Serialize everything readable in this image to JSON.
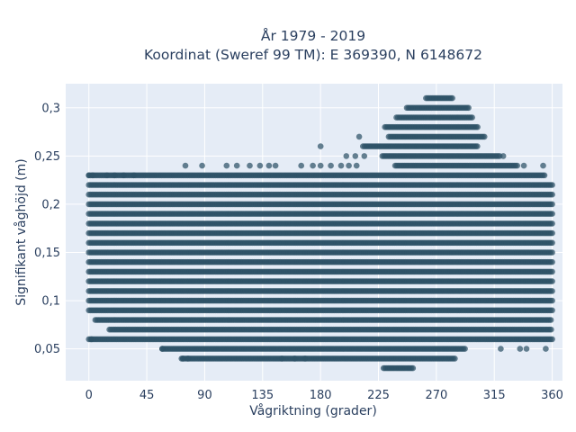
{
  "chart_data": {
    "type": "scatter",
    "title": "År 1979 - 2019",
    "subtitle": "Koordinat (Sweref 99 TM): E 369390, N 6148672",
    "xlabel": "Vågriktning (grader)",
    "ylabel": "Signifikant våghöjd (m)",
    "xlim": [
      -18,
      368
    ],
    "ylim": [
      0.017,
      0.325
    ],
    "x_ticks": [
      0,
      45,
      90,
      135,
      180,
      225,
      270,
      315,
      360
    ],
    "y_ticks": [
      0.05,
      0.1,
      0.15,
      0.2,
      0.25,
      0.3
    ],
    "x_tick_labels": [
      "0",
      "45",
      "90",
      "135",
      "180",
      "225",
      "270",
      "315",
      "360"
    ],
    "y_tick_labels": [
      "0,05",
      "0,1",
      "0,15",
      "0,2",
      "0,25",
      "0,3"
    ],
    "grid": true,
    "marker_color": "#2e5266",
    "marker_opacity": 0.72,
    "background_color": "#e5ecf6",
    "bands": [
      {
        "y": 0.03,
        "x_min": 229,
        "x_max": 252
      },
      {
        "y": 0.04,
        "x_min": 72,
        "x_max": 285
      },
      {
        "y": 0.05,
        "x_min": 57,
        "x_max": 293
      },
      {
        "y": 0.06,
        "x_min": 0,
        "x_max": 360
      },
      {
        "y": 0.07,
        "x_min": 16,
        "x_max": 360
      },
      {
        "y": 0.08,
        "x_min": 5,
        "x_max": 360
      },
      {
        "y": 0.09,
        "x_min": 0,
        "x_max": 360
      },
      {
        "y": 0.1,
        "x_min": 0,
        "x_max": 360
      },
      {
        "y": 0.11,
        "x_min": 0,
        "x_max": 360
      },
      {
        "y": 0.12,
        "x_min": 0,
        "x_max": 360
      },
      {
        "y": 0.13,
        "x_min": 0,
        "x_max": 360
      },
      {
        "y": 0.14,
        "x_min": 0,
        "x_max": 360
      },
      {
        "y": 0.15,
        "x_min": 0,
        "x_max": 360
      },
      {
        "y": 0.16,
        "x_min": 0,
        "x_max": 360
      },
      {
        "y": 0.17,
        "x_min": 0,
        "x_max": 360
      },
      {
        "y": 0.18,
        "x_min": 0,
        "x_max": 360
      },
      {
        "y": 0.19,
        "x_min": 0,
        "x_max": 360
      },
      {
        "y": 0.2,
        "x_min": 0,
        "x_max": 360
      },
      {
        "y": 0.21,
        "x_min": 0,
        "x_max": 360
      },
      {
        "y": 0.22,
        "x_min": 0,
        "x_max": 360
      },
      {
        "y": 0.23,
        "x_min": 0,
        "x_max": 355
      },
      {
        "y": 0.24,
        "x_min": 238,
        "x_max": 333
      },
      {
        "y": 0.25,
        "x_min": 228,
        "x_max": 320
      },
      {
        "y": 0.26,
        "x_min": 213,
        "x_max": 302
      },
      {
        "y": 0.27,
        "x_min": 233,
        "x_max": 308
      },
      {
        "y": 0.28,
        "x_min": 230,
        "x_max": 303
      },
      {
        "y": 0.29,
        "x_min": 239,
        "x_max": 298
      },
      {
        "y": 0.3,
        "x_min": 247,
        "x_max": 296
      },
      {
        "y": 0.31,
        "x_min": 262,
        "x_max": 283
      }
    ],
    "outliers": [
      {
        "x": 0,
        "y": 0.23
      },
      {
        "x": 3,
        "y": 0.23
      },
      {
        "x": 14,
        "y": 0.23
      },
      {
        "x": 20,
        "y": 0.23
      },
      {
        "x": 27,
        "y": 0.23
      },
      {
        "x": 35,
        "y": 0.23
      },
      {
        "x": 75,
        "y": 0.24
      },
      {
        "x": 88,
        "y": 0.24
      },
      {
        "x": 107,
        "y": 0.24
      },
      {
        "x": 115,
        "y": 0.24
      },
      {
        "x": 125,
        "y": 0.24
      },
      {
        "x": 133,
        "y": 0.24
      },
      {
        "x": 140,
        "y": 0.24
      },
      {
        "x": 145,
        "y": 0.24
      },
      {
        "x": 165,
        "y": 0.24
      },
      {
        "x": 174,
        "y": 0.24
      },
      {
        "x": 180,
        "y": 0.24
      },
      {
        "x": 188,
        "y": 0.24
      },
      {
        "x": 196,
        "y": 0.24
      },
      {
        "x": 202,
        "y": 0.24
      },
      {
        "x": 208,
        "y": 0.24
      },
      {
        "x": 338,
        "y": 0.24
      },
      {
        "x": 353,
        "y": 0.24
      },
      {
        "x": 200,
        "y": 0.25
      },
      {
        "x": 207,
        "y": 0.25
      },
      {
        "x": 214,
        "y": 0.25
      },
      {
        "x": 322,
        "y": 0.25
      },
      {
        "x": 180,
        "y": 0.26
      },
      {
        "x": 210,
        "y": 0.27
      },
      {
        "x": 2,
        "y": 0.06
      },
      {
        "x": 57,
        "y": 0.05
      },
      {
        "x": 77,
        "y": 0.04
      },
      {
        "x": 73,
        "y": 0.04
      },
      {
        "x": 150,
        "y": 0.04
      },
      {
        "x": 160,
        "y": 0.04
      },
      {
        "x": 168,
        "y": 0.04
      },
      {
        "x": 320,
        "y": 0.05
      },
      {
        "x": 335,
        "y": 0.05
      },
      {
        "x": 340,
        "y": 0.05
      },
      {
        "x": 355,
        "y": 0.05
      }
    ]
  }
}
